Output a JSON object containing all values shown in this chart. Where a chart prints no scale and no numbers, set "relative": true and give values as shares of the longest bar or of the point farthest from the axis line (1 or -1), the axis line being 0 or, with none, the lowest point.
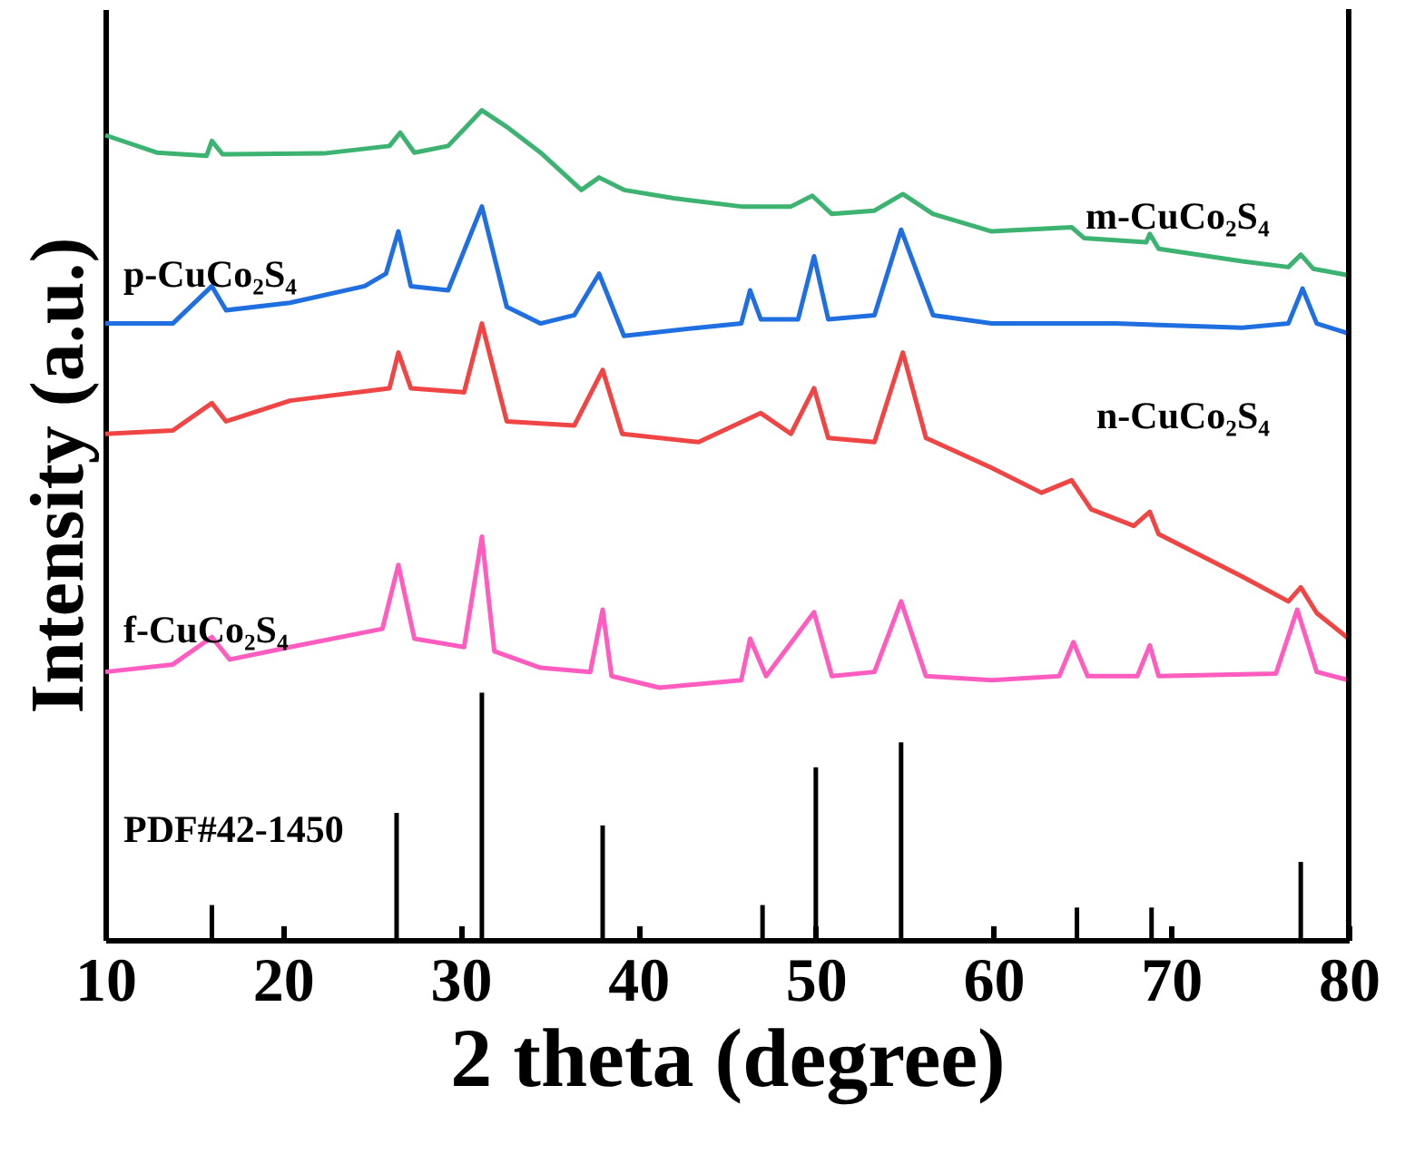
{
  "chart_data": {
    "type": "line",
    "relative": true,
    "xlabel": "2 theta (degree)",
    "ylabel": "Intensity (a.u.)",
    "xlim": [
      10,
      80
    ],
    "xticks": [
      10,
      20,
      30,
      40,
      50,
      60,
      70,
      80
    ],
    "grid": false,
    "legend": false,
    "marker": "none",
    "line_style": "solid",
    "series": [
      {
        "name": "m-CuCo₂S₄",
        "color": "#3cb371",
        "x": [
          10,
          12.9,
          15.7,
          16.0,
          16.6,
          22.3,
          26.0,
          26.6,
          27.4,
          29.3,
          31.2,
          32.6,
          34.5,
          36.8,
          37.8,
          39.2,
          42.0,
          45.8,
          48.6,
          49.8,
          50.9,
          53.3,
          54.9,
          56.6,
          59.9,
          64.4,
          65.1,
          68.6,
          68.8,
          69.3,
          74.0,
          76.6,
          77.3,
          78.0,
          80
        ],
        "values": [
          0.97,
          0.949,
          0.945,
          0.963,
          0.947,
          0.948,
          0.957,
          0.973,
          0.949,
          0.957,
          1,
          0.98,
          0.949,
          0.904,
          0.919,
          0.904,
          0.894,
          0.884,
          0.884,
          0.897,
          0.875,
          0.879,
          0.899,
          0.875,
          0.854,
          0.859,
          0.846,
          0.841,
          0.851,
          0.833,
          0.818,
          0.811,
          0.826,
          0.809,
          0.801
        ]
      },
      {
        "name": "p-CuCo₂S₄",
        "color": "#1f6fe0",
        "x": [
          10,
          13.8,
          16.0,
          16.8,
          20.4,
          24.6,
          25.8,
          26.5,
          27.2,
          29.3,
          31.2,
          32.6,
          34.5,
          36.4,
          37.8,
          39.2,
          43.4,
          45.8,
          46.3,
          46.9,
          49.0,
          49.9,
          50.7,
          53.3,
          54.8,
          56.6,
          59.9,
          66.9,
          74.0,
          76.6,
          77.4,
          78.2,
          80
        ],
        "values": [
          0.743,
          0.743,
          0.788,
          0.759,
          0.768,
          0.788,
          0.803,
          0.854,
          0.788,
          0.783,
          0.884,
          0.763,
          0.743,
          0.753,
          0.803,
          0.728,
          0.738,
          0.743,
          0.783,
          0.748,
          0.748,
          0.824,
          0.748,
          0.753,
          0.856,
          0.753,
          0.743,
          0.743,
          0.738,
          0.743,
          0.785,
          0.743,
          0.731
        ]
      },
      {
        "name": "n-CuCo₂S₄",
        "color": "#f04545",
        "x": [
          10,
          13.8,
          16.0,
          16.8,
          20.4,
          26.0,
          26.5,
          27.2,
          30.2,
          31.2,
          32.6,
          36.4,
          38.0,
          39.1,
          43.4,
          46.9,
          48.6,
          49.9,
          50.7,
          53.3,
          54.9,
          56.2,
          59.9,
          62.7,
          64.4,
          65.5,
          67.9,
          68.8,
          69.3,
          74.0,
          76.6,
          77.3,
          78.2,
          80
        ],
        "values": [
          0.61,
          0.614,
          0.647,
          0.625,
          0.65,
          0.665,
          0.708,
          0.665,
          0.66,
          0.743,
          0.625,
          0.62,
          0.687,
          0.61,
          0.6,
          0.635,
          0.61,
          0.665,
          0.605,
          0.6,
          0.708,
          0.605,
          0.569,
          0.539,
          0.554,
          0.519,
          0.499,
          0.516,
          0.489,
          0.438,
          0.408,
          0.425,
          0.394,
          0.363
        ]
      },
      {
        "name": "f-CuCo₂S₄",
        "color": "#ff5cbf",
        "x": [
          10,
          13.8,
          16.0,
          17.0,
          20.4,
          25.6,
          26.5,
          27.4,
          30.2,
          31.2,
          31.9,
          34.5,
          37.3,
          38.0,
          38.5,
          41.2,
          45.8,
          46.3,
          47.2,
          49.9,
          50.9,
          53.3,
          54.8,
          56.2,
          59.9,
          63.7,
          64.5,
          65.3,
          68.1,
          68.8,
          69.3,
          75.9,
          77.1,
          78.2,
          80
        ],
        "values": [
          0.323,
          0.332,
          0.365,
          0.338,
          0.353,
          0.375,
          0.452,
          0.363,
          0.353,
          0.486,
          0.348,
          0.328,
          0.323,
          0.398,
          0.318,
          0.304,
          0.313,
          0.363,
          0.318,
          0.395,
          0.318,
          0.323,
          0.408,
          0.318,
          0.313,
          0.318,
          0.359,
          0.318,
          0.318,
          0.355,
          0.318,
          0.321,
          0.398,
          0.323,
          0.313
        ]
      },
      {
        "name": "PDF#42-1450",
        "color": "#000000",
        "type": "bar",
        "x": [
          16.0,
          26.4,
          31.2,
          38.0,
          47.0,
          50.0,
          54.8,
          64.7,
          68.9,
          77.3
        ],
        "values": [
          0.042,
          0.153,
          0.298,
          0.138,
          0.042,
          0.208,
          0.238,
          0.039,
          0.039,
          0.094
        ]
      }
    ]
  }
}
